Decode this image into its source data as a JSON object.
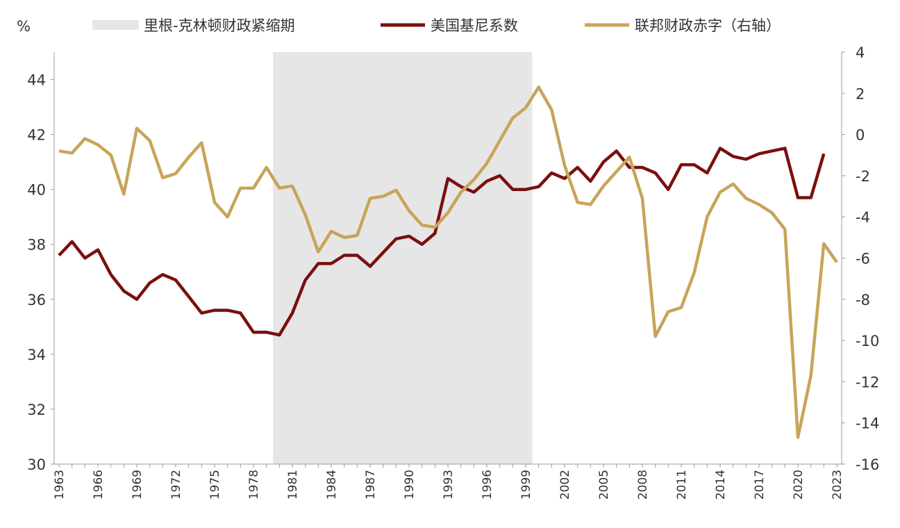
{
  "chart_data": {
    "type": "line",
    "left_axis": {
      "label": "%",
      "range": [
        30,
        45
      ],
      "ticks": [
        30,
        32,
        34,
        36,
        38,
        40,
        42,
        44
      ]
    },
    "right_axis": {
      "label": "",
      "range": [
        -16,
        4
      ],
      "ticks": [
        -16,
        -14,
        -12,
        -10,
        -8,
        -6,
        -4,
        -2,
        0,
        2,
        4
      ]
    },
    "x_range": [
      1963,
      2023
    ],
    "x_ticks": [
      1963,
      1966,
      1969,
      1972,
      1975,
      1978,
      1981,
      1984,
      1987,
      1990,
      1993,
      1996,
      1999,
      2002,
      2005,
      2008,
      2011,
      2014,
      2017,
      2020,
      2023
    ],
    "shaded_period": {
      "name": "里根-克林顿财政紧缩期",
      "start": 1979.5,
      "end": 1999.5,
      "color": "#e6e6e6"
    },
    "legend_position": "top",
    "series": [
      {
        "name": "美国基尼系数",
        "axis": "left",
        "color": "#7a0f0f",
        "start_year": 1963,
        "values": [
          37.6,
          38.1,
          37.5,
          37.8,
          36.9,
          36.3,
          36.0,
          36.6,
          36.9,
          36.7,
          36.1,
          35.5,
          35.6,
          35.6,
          35.5,
          34.8,
          34.8,
          34.7,
          35.5,
          36.7,
          37.3,
          37.3,
          37.6,
          37.6,
          37.2,
          37.7,
          38.2,
          38.3,
          38.0,
          38.4,
          40.4,
          40.1,
          39.9,
          40.3,
          40.5,
          40.0,
          40.0,
          40.1,
          40.6,
          40.4,
          40.8,
          40.3,
          41.0,
          41.4,
          40.8,
          40.8,
          40.6,
          40.0,
          40.9,
          40.9,
          40.6,
          41.5,
          41.2,
          41.1,
          41.3,
          41.4,
          41.5,
          39.7,
          39.7,
          41.3
        ]
      },
      {
        "name": "联邦财政赤字（右轴）",
        "axis": "right",
        "color": "#c8a45a",
        "start_year": 1963,
        "values": [
          -0.8,
          -0.9,
          -0.2,
          -0.5,
          -1.0,
          -2.9,
          0.3,
          -0.3,
          -2.1,
          -1.9,
          -1.1,
          -0.4,
          -3.3,
          -4.0,
          -2.6,
          -2.6,
          -1.6,
          -2.6,
          -2.5,
          -3.9,
          -5.7,
          -4.7,
          -5.0,
          -4.9,
          -3.1,
          -3.0,
          -2.7,
          -3.7,
          -4.4,
          -4.5,
          -3.8,
          -2.8,
          -2.2,
          -1.4,
          -0.3,
          0.8,
          1.3,
          2.3,
          1.2,
          -1.5,
          -3.3,
          -3.4,
          -2.5,
          -1.8,
          -1.1,
          -3.1,
          -9.8,
          -8.6,
          -8.4,
          -6.7,
          -4.0,
          -2.8,
          -2.4,
          -3.1,
          -3.4,
          -3.8,
          -4.6,
          -14.7,
          -11.7,
          -5.3,
          -6.2
        ]
      }
    ]
  }
}
